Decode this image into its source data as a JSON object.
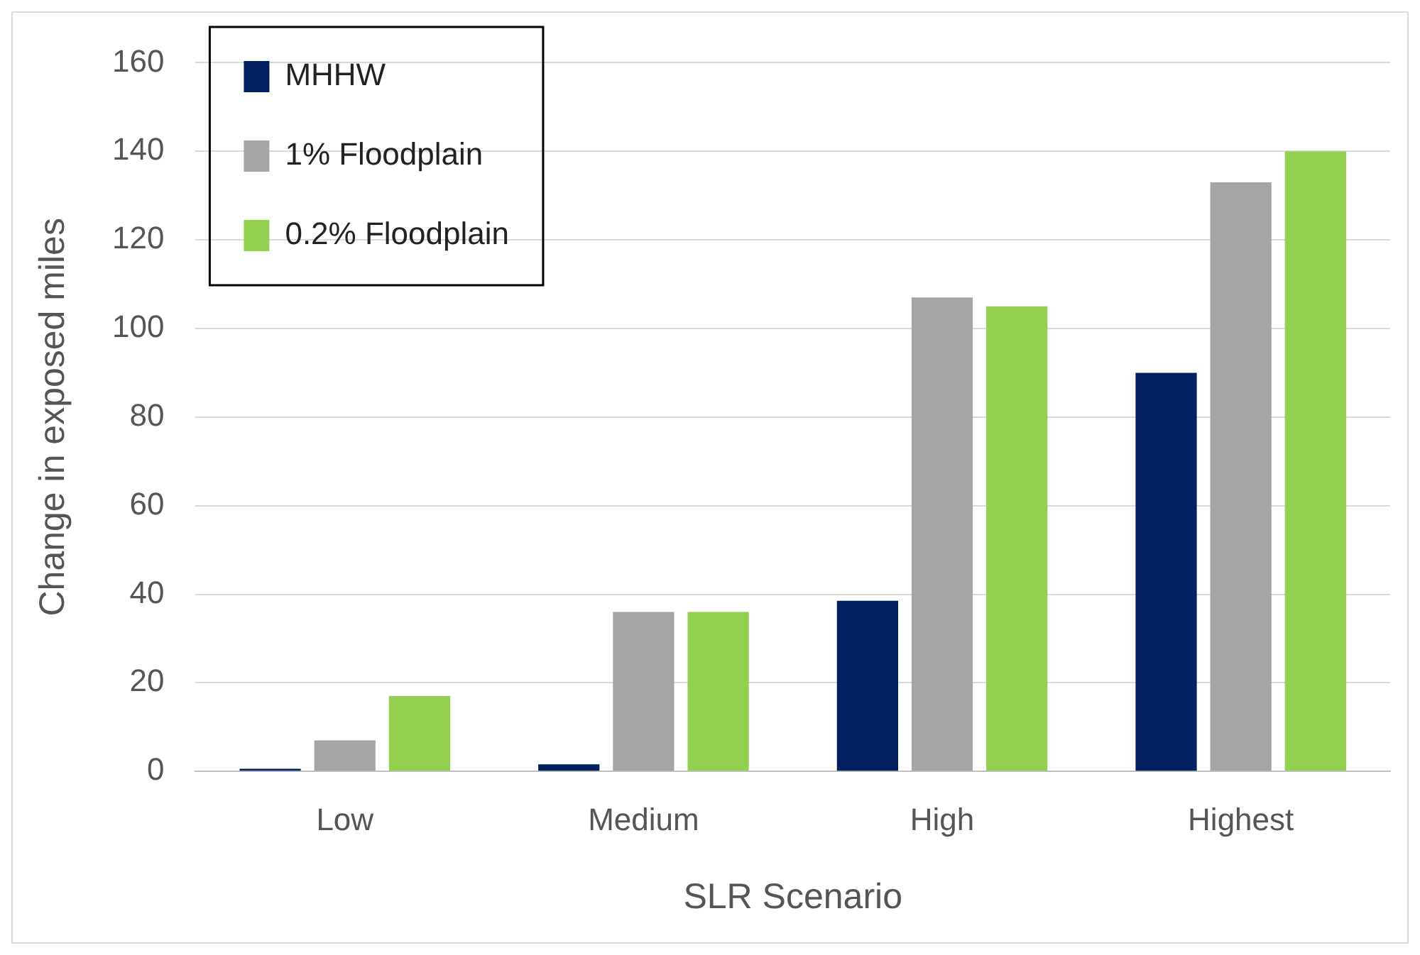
{
  "chart_data": {
    "type": "bar",
    "xlabel": "SLR Scenario",
    "ylabel": "Change in exposed miles",
    "categories": [
      "Low",
      "Medium",
      "High",
      "Highest"
    ],
    "series": [
      {
        "name": "MHHW",
        "color": "#002060",
        "values": [
          0.6,
          1.6,
          38.5,
          90
        ]
      },
      {
        "name": "1% Floodplain",
        "color": "#a5a5a5",
        "values": [
          7,
          36,
          107,
          133
        ]
      },
      {
        "name": "0.2% Floodplain",
        "color": "#92d050",
        "values": [
          17,
          36,
          105,
          140
        ]
      }
    ],
    "ylim": [
      0,
      160
    ],
    "yticks": [
      0,
      20,
      40,
      60,
      80,
      100,
      120,
      140,
      160
    ],
    "grid": "y",
    "legend": "top left"
  }
}
